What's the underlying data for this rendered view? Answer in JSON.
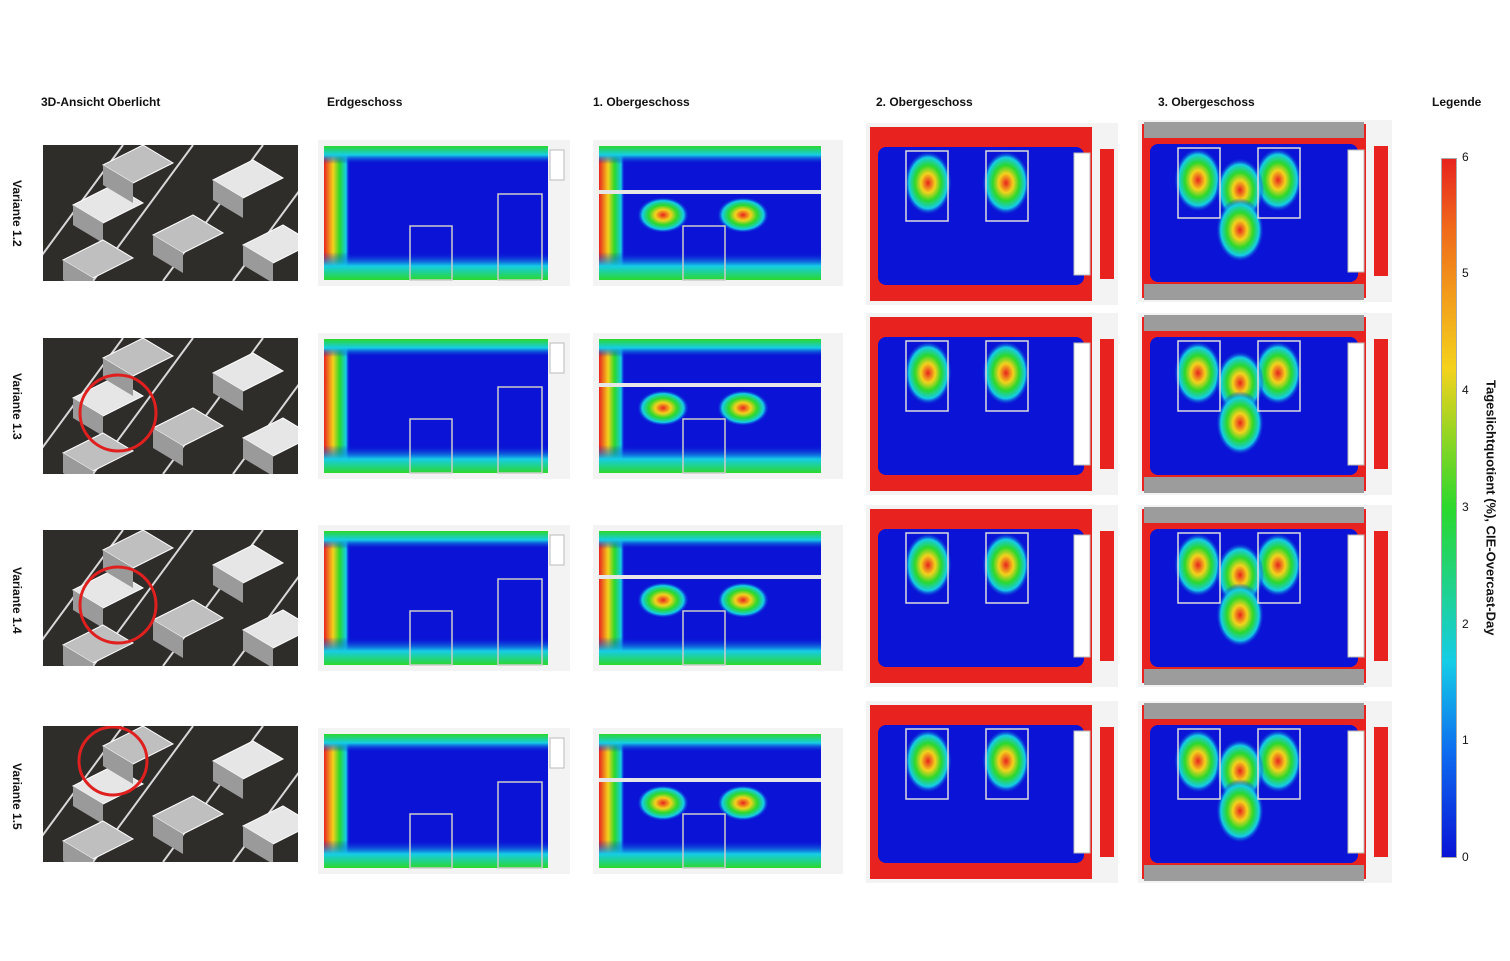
{
  "columns": [
    "3D-Ansicht Oberlicht",
    "Erdgeschoss",
    "1. Obergeschoss",
    "2. Obergeschoss",
    "3. Obergeschoss",
    "Legende"
  ],
  "rows": [
    "Variante 1.2",
    "Variante 1.3",
    "Variante 1.4",
    "Variante 1.5"
  ],
  "legend": {
    "title": "Tageslichtquotient (%), CIE-Overcast-Day",
    "ticks": [
      "6",
      "5",
      "4",
      "3",
      "2",
      "1",
      "0"
    ],
    "colors": [
      "#e8231f",
      "#f4d21c",
      "#2bd82c",
      "#15cde6",
      "#0a13d6"
    ]
  },
  "highlight_circle_rows": [
    1,
    2,
    3
  ]
}
